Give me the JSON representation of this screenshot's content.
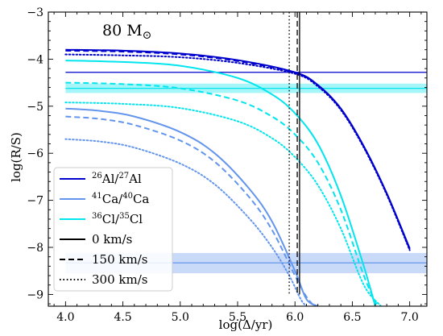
{
  "chart_data": {
    "type": "line",
    "xlabel": "log(Δ/yr)",
    "ylabel": "log(R/S)",
    "xlim": [
      3.85,
      7.15
    ],
    "ylim": [
      -9.25,
      -3.0
    ],
    "xticks": [
      4.0,
      4.5,
      5.0,
      5.5,
      6.0,
      6.5,
      7.0
    ],
    "xtick_labels": [
      "4.0",
      "4.5",
      "5.0",
      "5.5",
      "6.0",
      "6.5",
      "7.0"
    ],
    "yticks": [
      -9,
      -8,
      -7,
      -6,
      -5,
      -4,
      -3
    ],
    "ytick_labels": [
      "−9",
      "−8",
      "−7",
      "−6",
      "−5",
      "−4",
      "−3"
    ],
    "annotation": {
      "text": "80 M",
      "symbol": "⊙"
    },
    "legend_placement": "bottom-left",
    "legend": [
      {
        "isotope_num_mass": "26",
        "isotope_num": "Al",
        "isotope_den_mass": "27",
        "isotope_den": "Al",
        "color": "#0000cd",
        "style": "solid"
      },
      {
        "isotope_num_mass": "41",
        "isotope_num": "Ca",
        "isotope_den_mass": "40",
        "isotope_den": "Ca",
        "color": "#6495ed",
        "style": "solid"
      },
      {
        "isotope_num_mass": "36",
        "isotope_num": "Cl",
        "isotope_den_mass": "35",
        "isotope_den": "Cl",
        "color": "#00e5ee",
        "style": "solid"
      },
      {
        "label": "0 km/s",
        "color": "#000000",
        "style": "solid"
      },
      {
        "label": "150 km/s",
        "color": "#000000",
        "style": "dashed"
      },
      {
        "label": "300 km/s",
        "color": "#000000",
        "style": "dotted"
      }
    ],
    "series": [
      {
        "color": "#0000cd",
        "style": "solid",
        "x": [
          4.0,
          4.5,
          5.0,
          5.5,
          6.0,
          6.2,
          6.4,
          6.6,
          6.8,
          7.0
        ],
        "y": [
          -3.8,
          -3.82,
          -3.88,
          -4.02,
          -4.28,
          -4.55,
          -5.05,
          -5.85,
          -6.85,
          -8.02
        ]
      },
      {
        "color": "#0000cd",
        "style": "dashed",
        "x": [
          4.0,
          4.5,
          5.0,
          5.5,
          6.0,
          6.2,
          6.4,
          6.6,
          6.8,
          7.0
        ],
        "y": [
          -3.82,
          -3.84,
          -3.9,
          -4.04,
          -4.29,
          -4.56,
          -5.06,
          -5.86,
          -6.86,
          -8.04
        ]
      },
      {
        "color": "#0000cd",
        "style": "dotted",
        "x": [
          4.0,
          4.5,
          5.0,
          5.5,
          6.0,
          6.2,
          6.4,
          6.6,
          6.8,
          7.0
        ],
        "y": [
          -3.9,
          -3.92,
          -3.96,
          -4.08,
          -4.31,
          -4.58,
          -5.08,
          -5.88,
          -6.88,
          -8.06
        ]
      },
      {
        "color": "#00e5ee",
        "style": "solid",
        "x": [
          4.0,
          4.5,
          5.0,
          5.5,
          5.8,
          6.0,
          6.2,
          6.4,
          6.6,
          6.7
        ],
        "y": [
          -4.03,
          -4.06,
          -4.14,
          -4.4,
          -4.75,
          -5.15,
          -5.8,
          -6.9,
          -8.4,
          -9.25
        ]
      },
      {
        "color": "#00e5ee",
        "style": "dashed",
        "x": [
          4.0,
          4.5,
          5.0,
          5.5,
          5.8,
          6.0,
          6.2,
          6.4,
          6.6,
          6.72
        ],
        "y": [
          -4.5,
          -4.53,
          -4.62,
          -4.88,
          -5.22,
          -5.6,
          -6.2,
          -7.2,
          -8.6,
          -9.25
        ]
      },
      {
        "color": "#00e5ee",
        "style": "dotted",
        "x": [
          4.0,
          4.5,
          5.0,
          5.5,
          5.8,
          6.0,
          6.2,
          6.4,
          6.6,
          6.75
        ],
        "y": [
          -4.92,
          -4.95,
          -5.04,
          -5.32,
          -5.68,
          -6.08,
          -6.68,
          -7.6,
          -8.8,
          -9.25
        ]
      },
      {
        "color": "#6495ed",
        "style": "solid",
        "x": [
          4.0,
          4.3,
          4.6,
          5.0,
          5.3,
          5.6,
          5.8,
          6.0,
          6.1,
          6.2
        ],
        "y": [
          -5.05,
          -5.1,
          -5.22,
          -5.55,
          -6.0,
          -6.75,
          -7.45,
          -8.5,
          -9.1,
          -9.25
        ]
      },
      {
        "color": "#6495ed",
        "style": "dashed",
        "x": [
          4.0,
          4.3,
          4.6,
          5.0,
          5.3,
          5.6,
          5.8,
          6.0,
          6.1,
          6.17
        ],
        "y": [
          -5.22,
          -5.27,
          -5.4,
          -5.73,
          -6.18,
          -6.93,
          -7.63,
          -8.6,
          -9.05,
          -9.25
        ]
      },
      {
        "color": "#6495ed",
        "style": "dotted",
        "x": [
          4.0,
          4.3,
          4.6,
          5.0,
          5.3,
          5.6,
          5.8,
          5.95,
          6.05,
          6.1
        ],
        "y": [
          -5.7,
          -5.75,
          -5.88,
          -6.22,
          -6.66,
          -7.38,
          -8.0,
          -8.6,
          -9.1,
          -9.25
        ]
      }
    ],
    "hlines": [
      {
        "color": "#0000cd",
        "y": -4.28,
        "band": [
          -4.28,
          -4.28
        ]
      },
      {
        "color": "#00e5ee",
        "y": -4.62,
        "band": [
          -4.72,
          -4.52
        ]
      },
      {
        "color": "#6495ed",
        "y": -8.33,
        "band": [
          -8.55,
          -8.12
        ]
      }
    ],
    "vlines": [
      {
        "color": "#000000",
        "style": "solid",
        "x": 6.04,
        "ymin": -9.0
      },
      {
        "color": "#000000",
        "style": "dashed",
        "x": 6.02,
        "ymin": -9.0
      },
      {
        "color": "#000000",
        "style": "dotted",
        "x": 5.95,
        "ymin": -9.0
      }
    ]
  }
}
